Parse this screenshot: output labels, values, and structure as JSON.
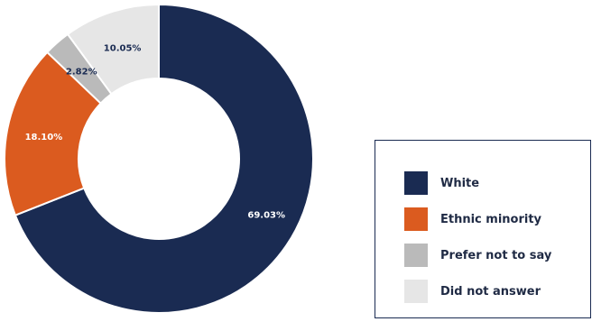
{
  "chart_data": {
    "type": "pie",
    "donut": true,
    "start_angle": "12 o'clock",
    "direction": "clockwise",
    "slices": [
      {
        "label": "White",
        "value": 69.03,
        "display": "69.03%",
        "color": "#1a2b52",
        "text_color": "#ffffff"
      },
      {
        "label": "Ethnic minority",
        "value": 18.1,
        "display": "18.10%",
        "color": "#db5b1f",
        "text_color": "#ffffff"
      },
      {
        "label": "Prefer not to say",
        "value": 2.82,
        "display": "2.82%",
        "color": "#bababa",
        "text_color": "#1a2b52"
      },
      {
        "label": "Did not answer",
        "value": 10.05,
        "display": "10.05%",
        "color": "#e6e6e6",
        "text_color": "#1a2b52"
      }
    ],
    "legend_position": "right",
    "slice_separator_color": "#ffffff"
  }
}
